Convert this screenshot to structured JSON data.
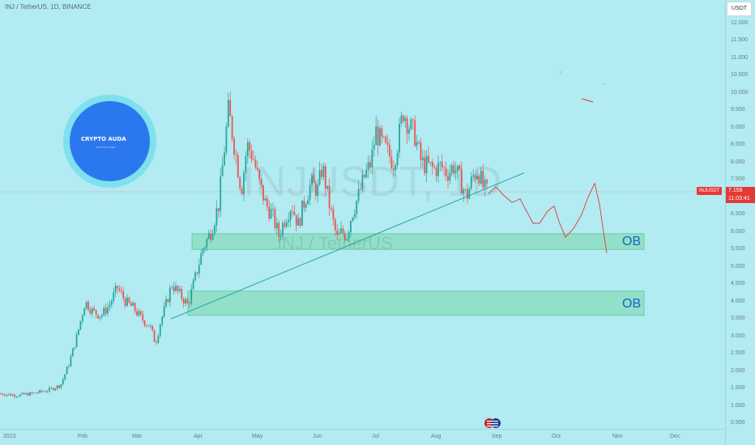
{
  "header": {
    "symbol_title": "INJ / TetherUS, 1D, BINANCE",
    "currency": "USDT"
  },
  "watermark": {
    "ticker": "INJUSDT, 1D",
    "name": "INJ / TetherUS"
  },
  "price_axis": {
    "ticks": [
      "12.000",
      "11.500",
      "11.000",
      "10.500",
      "10.000",
      "9.500",
      "9.000",
      "8.500",
      "8.000",
      "7.500",
      "7.000",
      "6.500",
      "6.000",
      "5.500",
      "5.000",
      "4.500",
      "4.000",
      "3.500",
      "3.000",
      "2.500",
      "2.000",
      "1.500",
      "1.000",
      "0.500"
    ]
  },
  "time_axis": {
    "ticks": [
      "2023",
      "Feb",
      "Mar",
      "Apr",
      "May",
      "Jun",
      "Jul",
      "Aug",
      "Sep",
      "Oct",
      "Nov",
      "Dec"
    ]
  },
  "last_price": {
    "symbol": "INJUSDT",
    "value": "7.158",
    "countdown": "11:03:41"
  },
  "zones": [
    {
      "label": "OB",
      "low": 5.5,
      "high": 5.95
    },
    {
      "label": "OB",
      "low": 3.6,
      "high": 4.3
    }
  ],
  "logo": {
    "text": "CRYPTO AUDA",
    "subtext": "CRYPTO AUDA"
  },
  "colors": {
    "background": "#b2ebf2",
    "up_candle": "#26a69a",
    "down_candle": "#ef5350",
    "trendline": "#26a69a",
    "zone": "#7fd6b0",
    "ob_label": "#1565c0",
    "price_badge": "#e53935",
    "logo_blue": "#2b78ee"
  },
  "icons": {
    "events": "us-flag-events-icon"
  }
}
